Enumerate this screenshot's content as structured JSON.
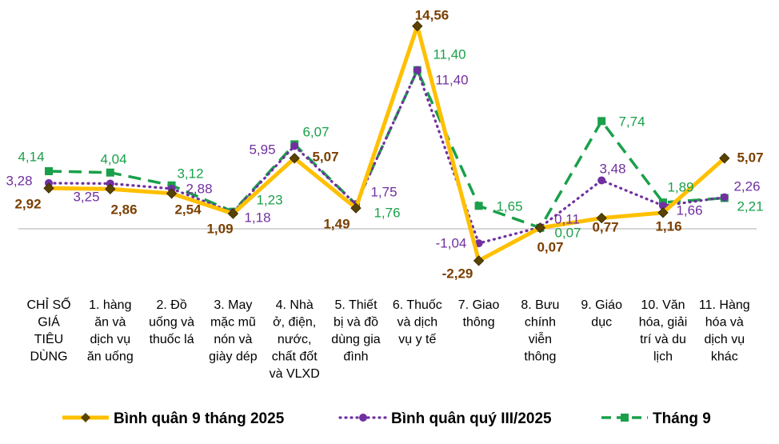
{
  "chart_data": {
    "type": "line",
    "title": "",
    "xlabel": "",
    "ylabel": "",
    "ylim": [
      -3,
      15
    ],
    "grid": false,
    "legend_position": "bottom",
    "categories": [
      "CHỈ SỐ GIÁ TIÊU DÙNG",
      "1. hàng ăn và dịch vụ ăn uống",
      "2. Đồ uống và thuốc lá",
      "3. May mặc mũ nón và giày dép",
      "4. Nhà ở, điện, nước, chất đốt và VLXD",
      "5. Thiết bị và đồ dùng gia đình",
      "6. Thuốc và dịch vụ y tế",
      "7. Giao thông",
      "8. Bưu chính viễn thông",
      "9. Giáo dục",
      "10. Văn hóa, giải trí và du lịch",
      "11. Hàng hóa và dịch vụ khác"
    ],
    "category_lines": [
      [
        "CHỈ SỐ",
        "GIÁ",
        "TIÊU",
        "DÙNG"
      ],
      [
        "1. hàng",
        "ăn và",
        "dịch vụ",
        "ăn uống"
      ],
      [
        "2. Đồ",
        "uống và",
        "thuốc lá"
      ],
      [
        "3. May",
        "mặc mũ",
        "nón và",
        "giày dép"
      ],
      [
        "4. Nhà",
        "ở, điện,",
        "nước,",
        "chất đốt",
        "và VLXD"
      ],
      [
        "5. Thiết",
        "bị và đồ",
        "dùng gia",
        "đình"
      ],
      [
        "6. Thuốc",
        "và dịch",
        "vụ y tế"
      ],
      [
        "7. Giao",
        "thông"
      ],
      [
        "8. Bưu",
        "chính",
        "viễn",
        "thông"
      ],
      [
        "9. Giáo",
        "dục"
      ],
      [
        "10. Văn",
        "hóa, giải",
        "trí và du",
        "lịch"
      ],
      [
        "11. Hàng",
        "hóa và",
        "dịch vụ",
        "khác"
      ]
    ],
    "series": [
      {
        "name": "Bình quân 9 tháng 2025",
        "color": "#FFC000",
        "label_color": "#7B3F00",
        "values": [
          2.92,
          2.86,
          2.54,
          1.09,
          5.07,
          1.49,
          14.56,
          -2.29,
          0.07,
          0.77,
          1.16,
          5.07
        ],
        "labels": [
          "2,92",
          "2,86",
          "2,54",
          "1,09",
          "5,07",
          "1,49",
          "14,56",
          "-2,29",
          "0,07",
          "0,77",
          "1,16",
          "5,07"
        ]
      },
      {
        "name": "Bình quân quý III/2025",
        "color": "#7030A0",
        "label_color": "#7030A0",
        "values": [
          3.28,
          3.25,
          2.88,
          1.18,
          5.95,
          1.75,
          11.4,
          -1.04,
          0.11,
          3.48,
          1.66,
          2.26
        ],
        "labels": [
          "3,28",
          "3,25",
          "2,88",
          "1,18",
          "5,95",
          "1,75",
          "11,40",
          "-1,04",
          "0,11",
          "3,48",
          "1,66",
          "2,26"
        ]
      },
      {
        "name": "Tháng 9",
        "color": "#1AA04A",
        "label_color": "#1AA04A",
        "values": [
          4.14,
          4.04,
          3.12,
          1.23,
          6.07,
          1.76,
          11.4,
          1.65,
          0.07,
          7.74,
          1.89,
          2.21
        ],
        "labels": [
          "4,14",
          "4,04",
          "3,12",
          "1,23",
          "6,07",
          "1,76",
          "11,40",
          "1,65",
          "0,07",
          "7,74",
          "1,89",
          "2,21"
        ]
      }
    ]
  }
}
